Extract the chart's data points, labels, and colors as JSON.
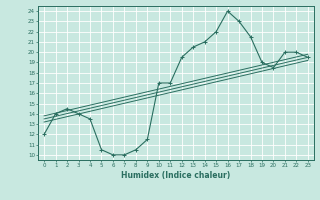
{
  "title": "",
  "xlabel": "Humidex (Indice chaleur)",
  "ylabel": "",
  "bg_color": "#c8e8e0",
  "line_color": "#2a6e60",
  "grid_color": "#ffffff",
  "xlim": [
    -0.5,
    23.5
  ],
  "ylim": [
    9.5,
    24.5
  ],
  "yticks": [
    10,
    11,
    12,
    13,
    14,
    15,
    16,
    17,
    18,
    19,
    20,
    21,
    22,
    23,
    24
  ],
  "xticks": [
    0,
    1,
    2,
    3,
    4,
    5,
    6,
    7,
    8,
    9,
    10,
    11,
    12,
    13,
    14,
    15,
    16,
    17,
    18,
    19,
    20,
    21,
    22,
    23
  ],
  "series1": {
    "x": [
      0,
      1,
      2,
      3,
      4,
      5,
      6,
      7,
      8,
      9,
      10,
      11,
      12,
      13,
      14,
      15,
      16,
      17,
      18,
      19,
      20,
      21,
      22,
      23
    ],
    "y": [
      12,
      14,
      14.5,
      14,
      13.5,
      10.5,
      10,
      10,
      10.5,
      11.5,
      17,
      17,
      19.5,
      20.5,
      21,
      22,
      24,
      23,
      21.5,
      19,
      18.5,
      20,
      20,
      19.5
    ]
  },
  "series2_x": [
    0,
    23
  ],
  "series2_y": [
    13.2,
    19.2
  ],
  "series3_x": [
    0,
    23
  ],
  "series3_y": [
    13.5,
    19.5
  ],
  "series4_x": [
    0,
    23
  ],
  "series4_y": [
    13.8,
    19.8
  ]
}
